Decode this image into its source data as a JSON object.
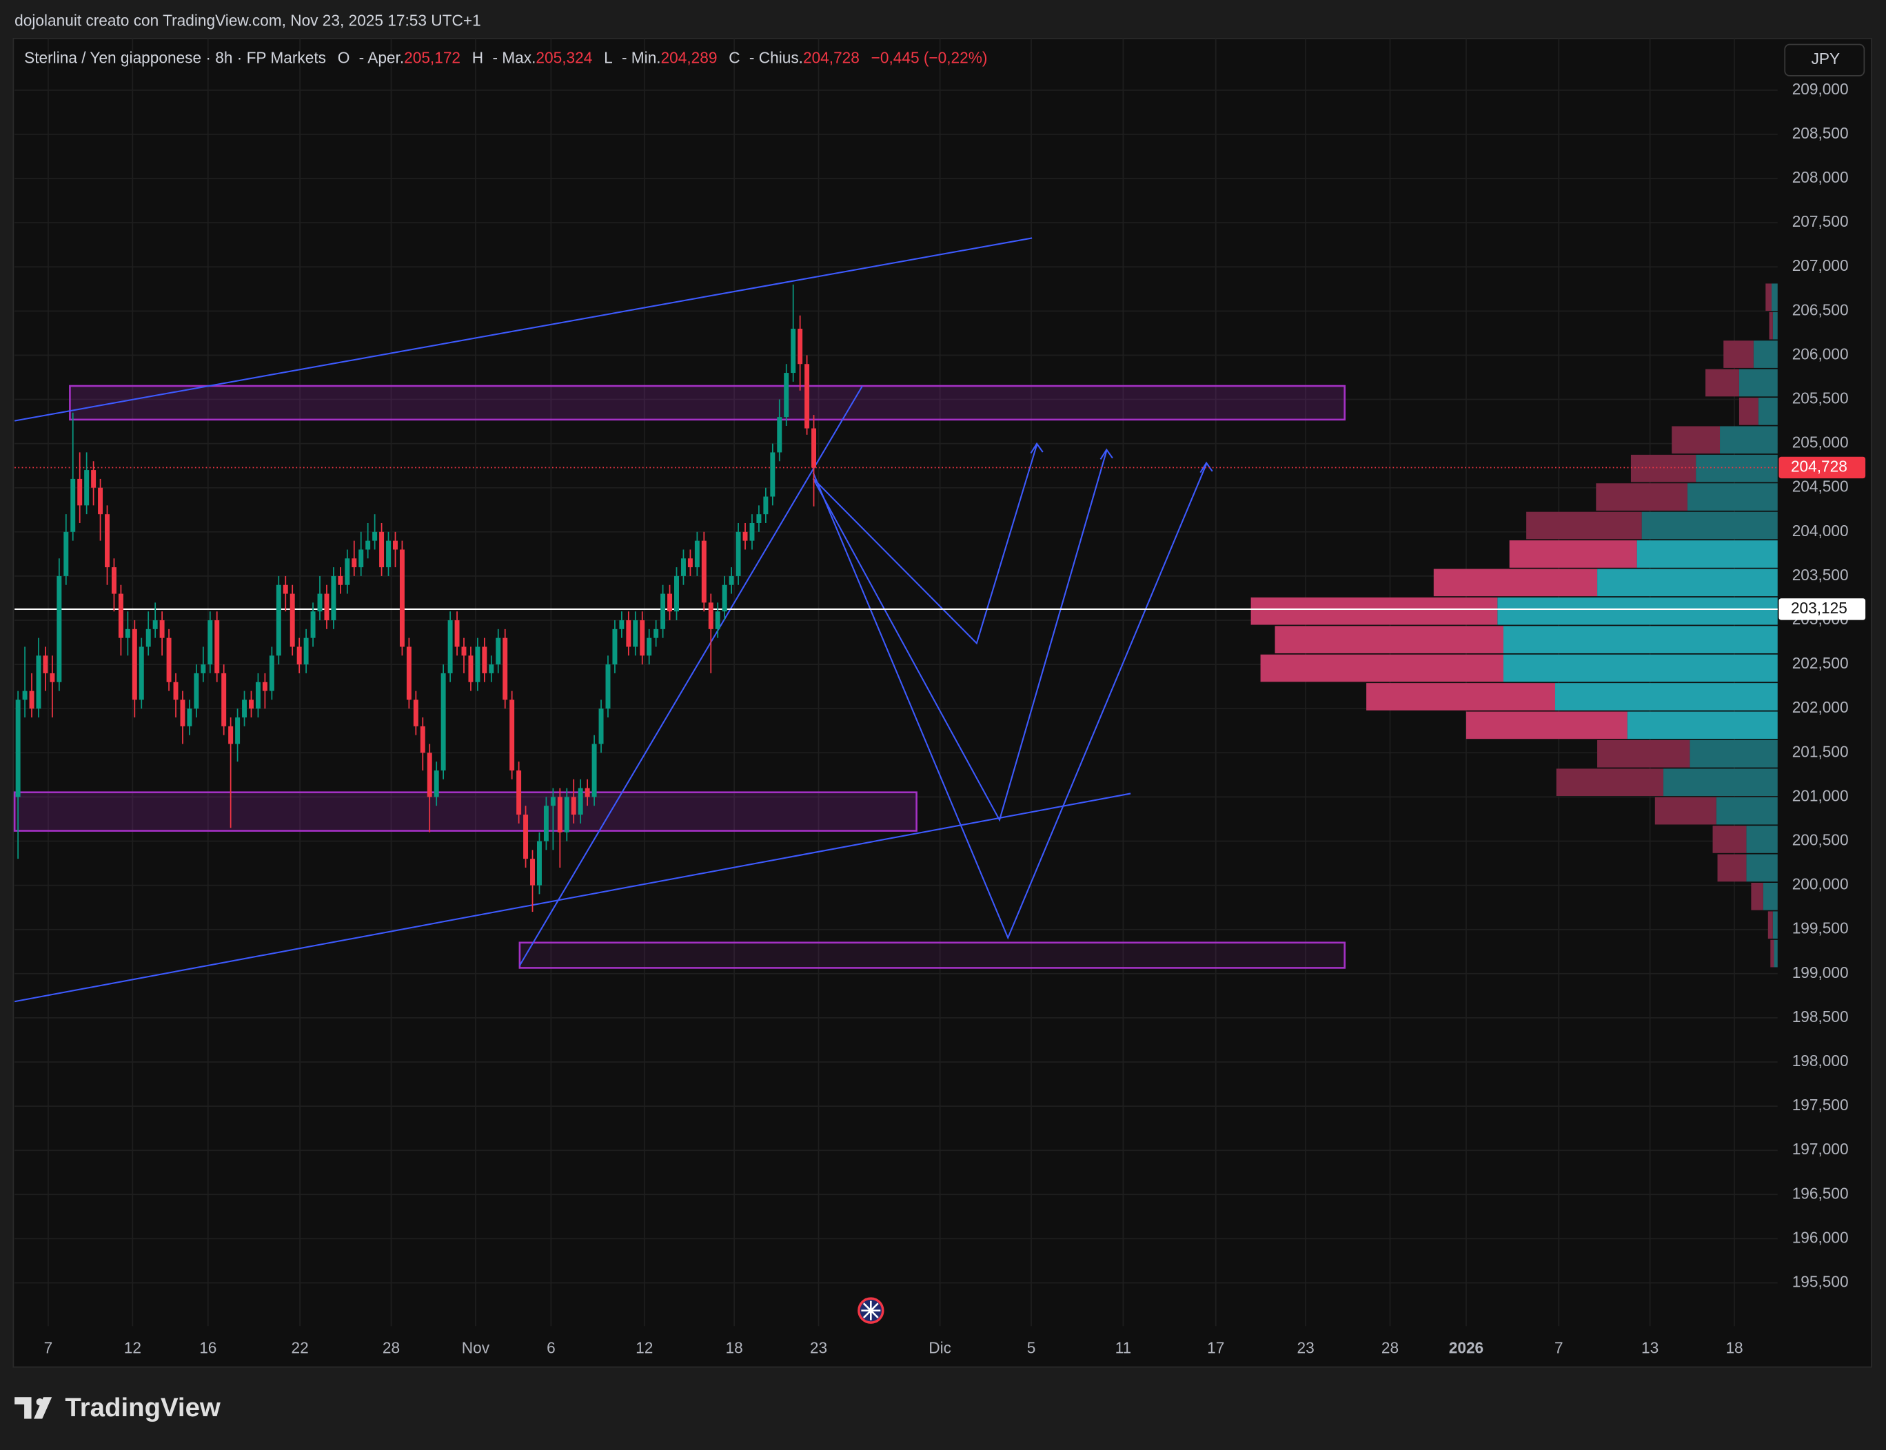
{
  "header": "dojolanuit creato con TradingView.com, Nov 23, 2025 17:53 UTC+1",
  "brand": "TradingView",
  "currency_button": "JPY",
  "legend": {
    "title": "Sterlina / Yen giapponese · 8h · FP Markets",
    "fields": [
      {
        "key": "O",
        "name": "- Aper.",
        "value": "205,172"
      },
      {
        "key": "H",
        "name": "- Max.",
        "value": "205,324"
      },
      {
        "key": "L",
        "name": "- Min.",
        "value": "204,289"
      },
      {
        "key": "C",
        "name": "- Chius.",
        "value": "204,728"
      }
    ],
    "change": "−0,445 (−0,22%)"
  },
  "chart_data": {
    "type": "candlestick",
    "up_color": "#089981",
    "down_color": "#f23645",
    "xlim": [
      0,
      257
    ],
    "xticks": [
      {
        "value": 4.9,
        "label": "7"
      },
      {
        "value": 17.2,
        "label": "12"
      },
      {
        "value": 28.2,
        "label": "16"
      },
      {
        "value": 41.6,
        "label": "22"
      },
      {
        "value": 54.9,
        "label": "28"
      },
      {
        "value": 67.2,
        "label": "Nov"
      },
      {
        "value": 78.2,
        "label": "6"
      },
      {
        "value": 91.8,
        "label": "12"
      },
      {
        "value": 104.9,
        "label": "18"
      },
      {
        "value": 117.2,
        "label": "23"
      },
      {
        "value": 134.9,
        "label": "Dic"
      },
      {
        "value": 148.2,
        "label": "5"
      },
      {
        "value": 161.6,
        "label": "11"
      },
      {
        "value": 175.1,
        "label": "17"
      },
      {
        "value": 188.2,
        "label": "23"
      },
      {
        "value": 200.5,
        "label": "28"
      },
      {
        "value": 211.6,
        "label": "2026"
      },
      {
        "value": 225.1,
        "label": "7"
      },
      {
        "value": 238.4,
        "label": "13"
      },
      {
        "value": 250.7,
        "label": "18"
      }
    ],
    "ylim": [
      195010,
      209585
    ],
    "yticks": [
      {
        "value": 209000,
        "label": "209,000"
      },
      {
        "value": 208500,
        "label": "208,500"
      },
      {
        "value": 208000,
        "label": "208,000"
      },
      {
        "value": 207500,
        "label": "207,500"
      },
      {
        "value": 207000,
        "label": "207,000"
      },
      {
        "value": 206500,
        "label": "206,500"
      },
      {
        "value": 206000,
        "label": "206,000"
      },
      {
        "value": 205500,
        "label": "205,500"
      },
      {
        "value": 205000,
        "label": "205,000"
      },
      {
        "value": 204500,
        "label": "204,500"
      },
      {
        "value": 204000,
        "label": "204,000"
      },
      {
        "value": 203500,
        "label": "203,500"
      },
      {
        "value": 203000,
        "label": "203,000"
      },
      {
        "value": 202500,
        "label": "202,500"
      },
      {
        "value": 202000,
        "label": "202,000"
      },
      {
        "value": 201500,
        "label": "201,500"
      },
      {
        "value": 201000,
        "label": "201,000"
      },
      {
        "value": 200500,
        "label": "200,500"
      },
      {
        "value": 200000,
        "label": "200,000"
      },
      {
        "value": 199500,
        "label": "199,500"
      },
      {
        "value": 199000,
        "label": "199,000"
      },
      {
        "value": 198500,
        "label": "198,500"
      },
      {
        "value": 198000,
        "label": "198,000"
      },
      {
        "value": 197500,
        "label": "197,500"
      },
      {
        "value": 197000,
        "label": "197,000"
      },
      {
        "value": 196500,
        "label": "196,500"
      },
      {
        "value": 196000,
        "label": "196,000"
      },
      {
        "value": 195500,
        "label": "195,500"
      }
    ],
    "grid": true,
    "last_price": {
      "value": 204728,
      "label": "204,728",
      "color": "#f23645"
    },
    "poc": {
      "value": 203125,
      "label": "203,125",
      "color": "#ffffff"
    },
    "candles": [
      [
        201000,
        202200,
        200300,
        202100
      ],
      [
        202100,
        202700,
        201900,
        202200
      ],
      [
        202200,
        202400,
        201900,
        202000
      ],
      [
        202000,
        202800,
        201900,
        202600
      ],
      [
        202600,
        202700,
        202200,
        202400
      ],
      [
        202400,
        202600,
        201900,
        202300
      ],
      [
        202300,
        203700,
        202200,
        203500
      ],
      [
        203500,
        204200,
        203400,
        204000
      ],
      [
        204000,
        205350,
        203900,
        204600
      ],
      [
        204600,
        204900,
        204100,
        204300
      ],
      [
        204300,
        204900,
        204200,
        204700
      ],
      [
        204700,
        204800,
        204300,
        204500
      ],
      [
        204500,
        204600,
        203900,
        204200
      ],
      [
        204200,
        204300,
        203400,
        203600
      ],
      [
        203600,
        203700,
        203100,
        203300
      ],
      [
        203300,
        203400,
        202600,
        202800
      ],
      [
        202800,
        203100,
        202600,
        202900
      ],
      [
        202900,
        203000,
        201900,
        202100
      ],
      [
        202100,
        202800,
        202000,
        202700
      ],
      [
        202700,
        203100,
        202600,
        202900
      ],
      [
        202900,
        203200,
        202800,
        203000
      ],
      [
        203000,
        203100,
        202600,
        202800
      ],
      [
        202800,
        202900,
        202200,
        202300
      ],
      [
        202300,
        202400,
        201900,
        202100
      ],
      [
        202100,
        202200,
        201600,
        201800
      ],
      [
        201800,
        202100,
        201700,
        202000
      ],
      [
        202000,
        202500,
        201900,
        202400
      ],
      [
        202400,
        202700,
        202300,
        202500
      ],
      [
        202500,
        203100,
        202400,
        203000
      ],
      [
        203000,
        203100,
        202300,
        202400
      ],
      [
        202400,
        202500,
        201700,
        201800
      ],
      [
        201800,
        201900,
        200650,
        201600
      ],
      [
        201600,
        202000,
        201400,
        201900
      ],
      [
        201900,
        202200,
        201800,
        202100
      ],
      [
        202100,
        202200,
        201900,
        202000
      ],
      [
        202000,
        202400,
        201900,
        202300
      ],
      [
        202300,
        202400,
        202000,
        202200
      ],
      [
        202200,
        202700,
        202100,
        202600
      ],
      [
        202600,
        203500,
        202500,
        203400
      ],
      [
        203400,
        203500,
        203100,
        203300
      ],
      [
        203300,
        203400,
        202600,
        202700
      ],
      [
        202700,
        202800,
        202400,
        202500
      ],
      [
        202500,
        202900,
        202400,
        202800
      ],
      [
        202800,
        203200,
        202700,
        203100
      ],
      [
        203100,
        203500,
        203000,
        203300
      ],
      [
        203300,
        203400,
        202900,
        203000
      ],
      [
        203000,
        203600,
        202900,
        203500
      ],
      [
        203500,
        203600,
        203300,
        203400
      ],
      [
        203400,
        203800,
        203300,
        203700
      ],
      [
        203700,
        203900,
        203500,
        203600
      ],
      [
        203600,
        204000,
        203500,
        203800
      ],
      [
        203800,
        204100,
        203700,
        203900
      ],
      [
        203900,
        204200,
        203800,
        204000
      ],
      [
        204000,
        204100,
        203500,
        203600
      ],
      [
        203600,
        204000,
        203500,
        203900
      ],
      [
        203900,
        204000,
        203600,
        203800
      ],
      [
        203800,
        203900,
        202600,
        202700
      ],
      [
        202700,
        202800,
        202000,
        202100
      ],
      [
        202100,
        202200,
        201700,
        201800
      ],
      [
        201800,
        201900,
        201300,
        201500
      ],
      [
        201500,
        201600,
        200600,
        201000
      ],
      [
        201000,
        201400,
        200900,
        201300
      ],
      [
        201300,
        202500,
        201200,
        202400
      ],
      [
        202400,
        203100,
        202300,
        203000
      ],
      [
        203000,
        203100,
        202600,
        202700
      ],
      [
        202700,
        202800,
        202400,
        202600
      ],
      [
        202600,
        202700,
        202200,
        202300
      ],
      [
        202300,
        202800,
        202200,
        202700
      ],
      [
        202700,
        202800,
        202300,
        202400
      ],
      [
        202400,
        202600,
        202300,
        202500
      ],
      [
        202500,
        202900,
        202400,
        202800
      ],
      [
        202800,
        202900,
        202000,
        202100
      ],
      [
        202100,
        202200,
        201200,
        201300
      ],
      [
        201300,
        201400,
        200700,
        200800
      ],
      [
        200800,
        200900,
        200200,
        200300
      ],
      [
        200300,
        200400,
        199700,
        200000
      ],
      [
        200000,
        200600,
        199900,
        200500
      ],
      [
        200500,
        201000,
        200400,
        200900
      ],
      [
        200900,
        201100,
        200400,
        201000
      ],
      [
        201000,
        201100,
        200200,
        200600
      ],
      [
        200600,
        201100,
        200500,
        201000
      ],
      [
        201000,
        201200,
        200700,
        200800
      ],
      [
        200800,
        201200,
        200700,
        201100
      ],
      [
        201100,
        201200,
        200900,
        201000
      ],
      [
        201000,
        201700,
        200900,
        201600
      ],
      [
        201600,
        202100,
        201500,
        202000
      ],
      [
        202000,
        202600,
        201900,
        202500
      ],
      [
        202500,
        203000,
        202400,
        202900
      ],
      [
        202900,
        203100,
        202800,
        203000
      ],
      [
        203000,
        203100,
        202600,
        202700
      ],
      [
        202700,
        203100,
        202600,
        203000
      ],
      [
        203000,
        203100,
        202500,
        202600
      ],
      [
        202600,
        202900,
        202500,
        202800
      ],
      [
        202800,
        203000,
        202700,
        202900
      ],
      [
        202900,
        203400,
        202800,
        203300
      ],
      [
        203300,
        203400,
        203000,
        203100
      ],
      [
        203100,
        203600,
        203000,
        203500
      ],
      [
        203500,
        203800,
        203400,
        203700
      ],
      [
        203700,
        203800,
        203500,
        203600
      ],
      [
        203600,
        204000,
        203500,
        203900
      ],
      [
        203900,
        204000,
        203100,
        203200
      ],
      [
        203200,
        203300,
        202400,
        202900
      ],
      [
        202900,
        203200,
        202800,
        203100
      ],
      [
        203100,
        203500,
        203000,
        203400
      ],
      [
        203400,
        203600,
        203300,
        203500
      ],
      [
        203500,
        204100,
        203400,
        204000
      ],
      [
        204000,
        204100,
        203800,
        203900
      ],
      [
        203900,
        204200,
        203800,
        204100
      ],
      [
        204100,
        204300,
        204000,
        204200
      ],
      [
        204200,
        204500,
        204100,
        204400
      ],
      [
        204400,
        205000,
        204300,
        204900
      ],
      [
        204900,
        205500,
        204800,
        205300
      ],
      [
        205300,
        205900,
        205200,
        205800
      ],
      [
        205800,
        206800,
        205700,
        206300
      ],
      [
        206300,
        206450,
        205600,
        205900
      ],
      [
        205900,
        206000,
        205100,
        205172
      ],
      [
        205172,
        205324,
        204289,
        204728
      ]
    ],
    "volume_profile": {
      "row_start": 199066,
      "row_size": 323,
      "up": [
        3,
        4,
        12,
        26,
        26,
        51,
        95,
        73,
        125,
        185,
        228,
        228,
        233,
        150,
        117,
        113,
        75,
        68,
        48,
        16,
        32,
        20,
        4,
        5
      ],
      "down": [
        3,
        4,
        10,
        24,
        28,
        51,
        89,
        77,
        134,
        157,
        202,
        190,
        205,
        136,
        106,
        96,
        76,
        54,
        40,
        16,
        28,
        25,
        3,
        5
      ],
      "value_area": [
        201652,
        203914
      ],
      "colors": {
        "up": "#22a1ad",
        "down": "#c23a66",
        "up_outside": "#1d6b72",
        "down_outside": "#7b2843"
      }
    }
  }
}
